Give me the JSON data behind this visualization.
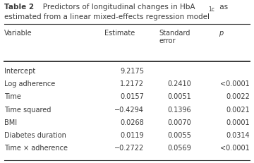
{
  "title_bold": "Table 2",
  "title_rest": "   Predictors of longitudinal changes in HbA",
  "title_sub": "1c",
  "title_as": " as",
  "title_line2": "estimated from a linear mixed-effects regression model",
  "col_headers": [
    "Variable",
    "Estimate",
    "Standard\nerror",
    "p"
  ],
  "rows": [
    [
      "Intercept",
      "9.2175",
      "",
      ""
    ],
    [
      "Log adherence",
      "1.2172",
      "0.2410",
      "<0.0001"
    ],
    [
      "Time",
      "0.0157",
      "0.0051",
      "0.0022"
    ],
    [
      "Time squared",
      "−0.4294",
      "0.1396",
      "0.0021"
    ],
    [
      "BMI",
      "0.0268",
      "0.0070",
      "0.0001"
    ],
    [
      "Diabetes duration",
      "0.0119",
      "0.0055",
      "0.0314"
    ],
    [
      "Time × adherence",
      "−0.2722",
      "0.0569",
      "<0.0001"
    ]
  ],
  "bg_color": "#ffffff",
  "text_color": "#3a3a3a",
  "fontsize": 7.0,
  "title_fontsize": 7.5
}
